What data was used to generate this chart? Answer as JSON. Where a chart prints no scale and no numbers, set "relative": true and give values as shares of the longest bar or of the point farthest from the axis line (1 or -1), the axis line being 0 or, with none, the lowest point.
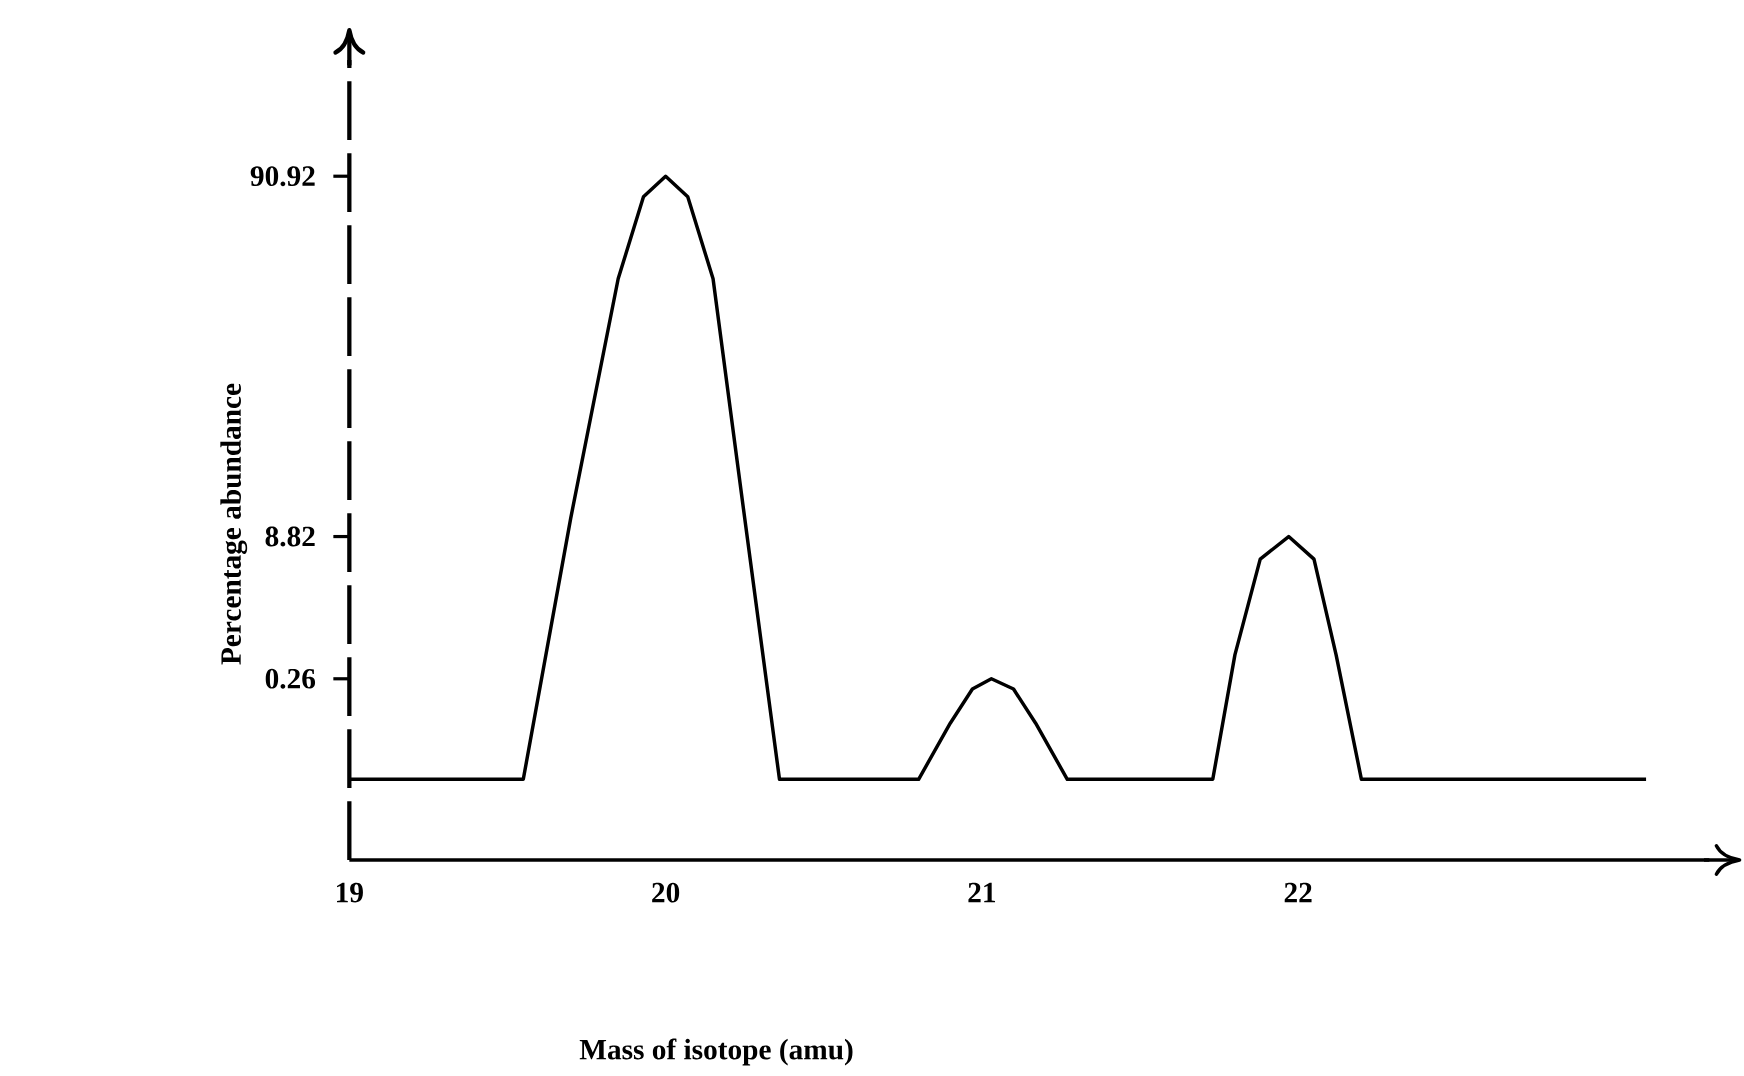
{
  "chart_data": {
    "type": "line",
    "relative": true,
    "color": "#000000",
    "xlabel": "Mass of isotope (amu)",
    "ylabel": "Percentage abundance",
    "xlim": [
      19,
      23.3
    ],
    "xticks": [
      19,
      20,
      21,
      22
    ],
    "x": [
      19,
      19.55,
      19.7,
      19.85,
      19.93,
      20,
      20.07,
      20.15,
      20.25,
      20.36,
      20.8,
      20.9,
      20.97,
      21.03,
      21.1,
      21.17,
      21.27,
      21.73,
      21.8,
      21.88,
      21.97,
      22.05,
      22.12,
      22.2,
      23.1
    ],
    "values": [
      0.118,
      0.118,
      0.5,
      0.85,
      0.97,
      1,
      0.97,
      0.85,
      0.5,
      0.118,
      0.118,
      0.2,
      0.25,
      0.265,
      0.25,
      0.2,
      0.118,
      0.118,
      0.3,
      0.44,
      0.473,
      0.44,
      0.3,
      0.118,
      0.118
    ],
    "annotations": [
      "90.92",
      "8.82",
      "0.26"
    ]
  }
}
